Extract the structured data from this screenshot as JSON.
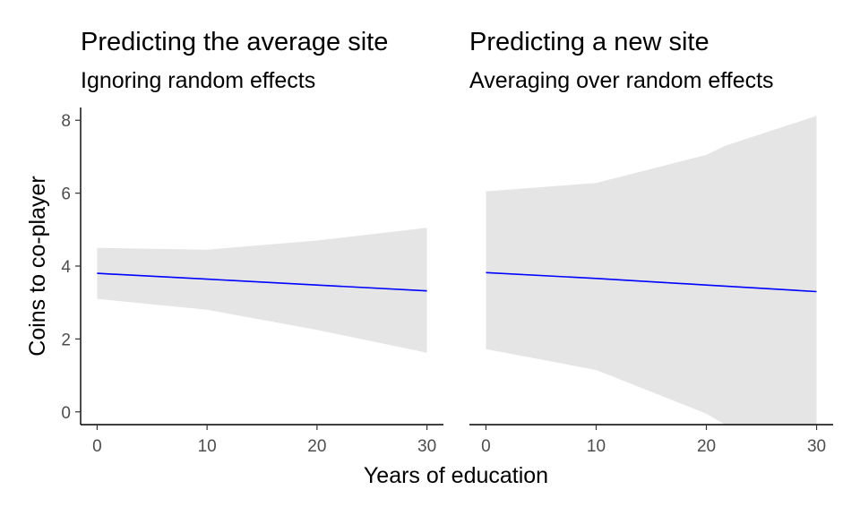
{
  "shared": {
    "xlabel": "Years of education",
    "ylabel": "Coins to co-player"
  },
  "colors": {
    "line": "#0000ff",
    "ribbon": "#e5e5e5",
    "axis": "#000000",
    "tick_text": "#4d4d4d"
  },
  "chart_data": [
    {
      "type": "area",
      "title": "Predicting the average site",
      "subtitle": "Ignoring random effects",
      "xlabel": "Years of education",
      "ylabel": "Coins to co-player",
      "xlim": [
        -1.5,
        31.5
      ],
      "ylim": [
        -0.35,
        8.35
      ],
      "x_ticks": [
        0,
        10,
        20,
        30
      ],
      "y_ticks": [
        0,
        2,
        4,
        6,
        8
      ],
      "grid": false,
      "series": [
        {
          "type": "line",
          "x": [
            0,
            10,
            20,
            30
          ],
          "y": [
            3.8,
            3.64,
            3.48,
            3.32
          ]
        },
        {
          "type": "ribbon",
          "x": [
            0,
            10,
            20,
            30
          ],
          "lower": [
            3.1,
            2.8,
            2.25,
            1.62
          ],
          "upper": [
            4.5,
            4.45,
            4.7,
            5.05
          ]
        }
      ]
    },
    {
      "type": "area",
      "title": "Predicting a new site",
      "subtitle": "Averaging over random effects",
      "xlabel": "Years of education",
      "ylabel": "Coins to co-player",
      "xlim": [
        -1.5,
        31.5
      ],
      "ylim": [
        -0.35,
        8.35
      ],
      "x_ticks": [
        0,
        10,
        20,
        30
      ],
      "y_ticks": [
        0,
        2,
        4,
        6,
        8
      ],
      "grid": false,
      "series": [
        {
          "type": "line",
          "x": [
            0,
            10,
            20,
            30
          ],
          "y": [
            3.82,
            3.66,
            3.48,
            3.3
          ]
        },
        {
          "type": "ribbon",
          "x": [
            0,
            10,
            20,
            21.7,
            30
          ],
          "lower": [
            1.72,
            1.15,
            -0.05,
            -0.35,
            -0.35
          ],
          "upper": [
            6.05,
            6.28,
            7.05,
            7.3,
            8.12
          ]
        }
      ]
    }
  ]
}
